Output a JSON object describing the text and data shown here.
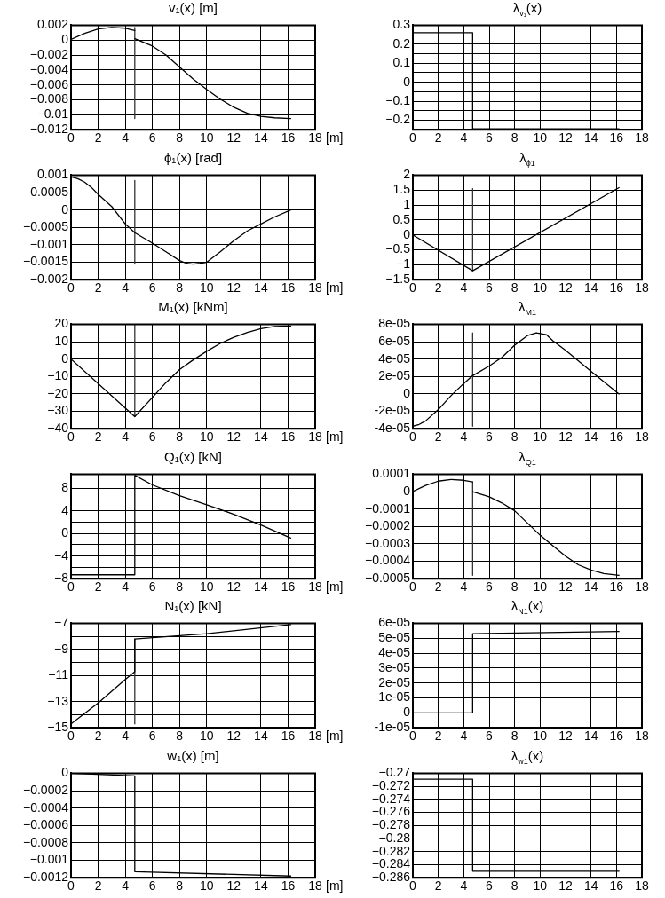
{
  "chart_data": [
    {
      "type": "line",
      "title": "v₁(x) [m]",
      "xlabel": "[m]",
      "xlim": [
        0,
        18
      ],
      "xticks": [
        0,
        2,
        4,
        6,
        8,
        10,
        12,
        14,
        16,
        18
      ],
      "ylim": [
        -0.012,
        0.002
      ],
      "yticks": [
        0.002,
        0,
        {
          "value": -0.002,
          "label": "−0.002"
        },
        {
          "value": -0.004,
          "label": "−0.004"
        },
        {
          "value": -0.006,
          "label": "−0.006"
        },
        {
          "value": -0.008,
          "label": "−0.008"
        },
        {
          "value": -0.01,
          "label": "−0.01"
        },
        {
          "value": -0.012,
          "label": "−0.012"
        }
      ],
      "grid": true,
      "series": [
        {
          "color": "#000000",
          "x": [
            0,
            1,
            2,
            3,
            4,
            4.7
          ],
          "values": [
            0.0001,
            0.0009,
            0.0015,
            0.0017,
            0.0016,
            0.0013
          ]
        },
        {
          "color": "#000000",
          "x": [
            4.7,
            6,
            7,
            8,
            9,
            10,
            11,
            12,
            13,
            14,
            15,
            16.2
          ],
          "values": [
            0.0002,
            -0.0008,
            -0.002,
            -0.0036,
            -0.0052,
            -0.0066,
            -0.0079,
            -0.009,
            -0.0098,
            -0.0102,
            -0.0104,
            -0.0105
          ]
        },
        {
          "color": "#333333",
          "x": [
            4.7,
            4.7
          ],
          "values": [
            0.0017,
            -0.0105
          ]
        }
      ]
    },
    {
      "type": "line",
      "title": "λ$_{v₁}$(x)",
      "xlim": [
        0,
        18
      ],
      "xticks": [
        0,
        2,
        4,
        6,
        8,
        10,
        12,
        14,
        16,
        18
      ],
      "ylim": [
        -0.25,
        0.3
      ],
      "yticks": [
        {
          "value": -0.25,
          "label": null
        },
        {
          "value": -0.2,
          "label": "−0.2"
        },
        {
          "value": -0.15,
          "label": null
        },
        {
          "value": -0.1,
          "label": "−0.1"
        },
        {
          "value": -0.05,
          "label": null
        },
        0,
        {
          "value": 0.05,
          "label": null
        },
        0.1,
        {
          "value": 0.15,
          "label": null
        },
        0.2,
        {
          "value": 0.25,
          "label": null
        },
        0.3
      ],
      "grid": true,
      "series": [
        {
          "color": "#000000",
          "x": [
            0,
            4.7,
            4.7,
            16.2
          ],
          "values": [
            0.26,
            0.26,
            -0.245,
            -0.245
          ]
        }
      ]
    },
    {
      "type": "line",
      "title": "ϕ₁(x) [rad]",
      "xlabel": "[m]",
      "xlim": [
        0,
        18
      ],
      "xticks": [
        0,
        2,
        4,
        6,
        8,
        10,
        12,
        14,
        16,
        18
      ],
      "ylim": [
        -0.002,
        0.001
      ],
      "yticks": [
        {
          "value": -0.002,
          "label": "−0.002"
        },
        {
          "value": -0.0015,
          "label": "−0.0015"
        },
        {
          "value": -0.001,
          "label": "−0.001"
        },
        {
          "value": -0.0005,
          "label": "−0.0005"
        },
        0,
        0.0005,
        0.001
      ],
      "grid": true,
      "series": [
        {
          "color": "#000000",
          "x": [
            0,
            0.5,
            1,
            1.5,
            2,
            3,
            4,
            4.7,
            6,
            7,
            8,
            8.5,
            9,
            9.5,
            10,
            11,
            12,
            13,
            14,
            15,
            16.2
          ],
          "values": [
            0.00095,
            0.0009,
            0.0008,
            0.00065,
            0.00045,
            0.0001,
            -0.0004,
            -0.00065,
            -0.00095,
            -0.0012,
            -0.00145,
            -0.00153,
            -0.00155,
            -0.00153,
            -0.0015,
            -0.0012,
            -0.00088,
            -0.0006,
            -0.0004,
            -0.0002,
            0
          ]
        },
        {
          "color": "#333333",
          "x": [
            4.7,
            4.7
          ],
          "values": [
            0.00085,
            -0.00155
          ]
        }
      ]
    },
    {
      "type": "line",
      "title": "λ$_{ϕ1}$",
      "xlim": [
        0,
        18
      ],
      "xticks": [
        0,
        2,
        4,
        6,
        8,
        10,
        12,
        14,
        16,
        18
      ],
      "ylim": [
        -1.5,
        2
      ],
      "yticks": [
        {
          "value": -1.5,
          "label": "−1.5"
        },
        {
          "value": -1,
          "label": "−1"
        },
        {
          "value": -0.5,
          "label": "−0.5"
        },
        0,
        0.5,
        1,
        1.5,
        2
      ],
      "grid": true,
      "series": [
        {
          "color": "#000000",
          "x": [
            0,
            4.7,
            16.2
          ],
          "values": [
            0,
            -1.2,
            1.58
          ]
        },
        {
          "color": "#333333",
          "x": [
            4.7,
            4.7
          ],
          "values": [
            1.55,
            -1.2
          ]
        }
      ]
    },
    {
      "type": "line",
      "title": "M₁(x) [kNm]",
      "xlabel": "[m]",
      "xlim": [
        0,
        18
      ],
      "xticks": [
        0,
        2,
        4,
        6,
        8,
        10,
        12,
        14,
        16,
        18
      ],
      "ylim": [
        -40,
        20
      ],
      "yticks": [
        {
          "value": -40,
          "label": "−40"
        },
        {
          "value": -30,
          "label": "−30"
        },
        {
          "value": -20,
          "label": "−20"
        },
        {
          "value": -10,
          "label": "−10"
        },
        0,
        10,
        20
      ],
      "grid": true,
      "series": [
        {
          "color": "#000000",
          "x": [
            0,
            4.7,
            6,
            7,
            8,
            9,
            10,
            11,
            12,
            13,
            14,
            15,
            16.2
          ],
          "values": [
            0,
            -33,
            -22,
            -13.5,
            -6,
            -0.5,
            4.5,
            9,
            12.5,
            15.3,
            17.5,
            18.7,
            19
          ]
        },
        {
          "color": "#333333",
          "x": [
            4.7,
            4.7
          ],
          "values": [
            20,
            -33
          ]
        }
      ]
    },
    {
      "type": "line",
      "title": "λ$_{M1}$",
      "xlim": [
        0,
        18
      ],
      "xticks": [
        0,
        2,
        4,
        6,
        8,
        10,
        12,
        14,
        16,
        18
      ],
      "ylim": [
        -4e-05,
        8e-05
      ],
      "yticks": [
        {
          "value": -4e-05,
          "label": "-4e-05"
        },
        {
          "value": -2e-05,
          "label": "-2e-05"
        },
        0,
        {
          "value": 2e-05,
          "label": "2e-05"
        },
        {
          "value": 4e-05,
          "label": "4e-05"
        },
        {
          "value": 6e-05,
          "label": "6e-05"
        },
        {
          "value": 8e-05,
          "label": "8e-05"
        }
      ],
      "grid": true,
      "series": [
        {
          "color": "#000000",
          "x": [
            0,
            0.5,
            1,
            2,
            3,
            4,
            4.7,
            6,
            7,
            8,
            9,
            9.7,
            10.5,
            11,
            12,
            14,
            16.2
          ],
          "values": [
            -3.7e-05,
            -3.5e-05,
            -3.1e-05,
            -1.8e-05,
            -2e-06,
            1.2e-05,
            2.1e-05,
            3.2e-05,
            4.2e-05,
            5.6e-05,
            6.7e-05,
            7e-05,
            6.8e-05,
            6.1e-05,
            5e-05,
            2.6e-05,
            0
          ]
        },
        {
          "color": "#333333",
          "x": [
            4.7,
            4.7
          ],
          "values": [
            7e-05,
            -3.7e-05
          ]
        }
      ]
    },
    {
      "type": "line",
      "title": "Q₁(x) [kN]",
      "xlabel": "[m]",
      "xlim": [
        0,
        18
      ],
      "xticks": [
        0,
        2,
        4,
        6,
        8,
        10,
        12,
        14,
        16,
        18
      ],
      "ylim": [
        -8,
        10.5
      ],
      "yticks": [
        {
          "value": -8,
          "label": "−8"
        },
        {
          "value": -6,
          "label": null
        },
        {
          "value": -4,
          "label": "−4"
        },
        {
          "value": -2,
          "label": null
        },
        0,
        {
          "value": 2,
          "label": null
        },
        4,
        {
          "value": 6,
          "label": null
        },
        8,
        {
          "value": 10,
          "label": null
        }
      ],
      "grid": true,
      "series": [
        {
          "color": "#000000",
          "x": [
            0,
            4.7,
            4.7,
            6,
            8,
            10,
            12,
            14,
            16.2
          ],
          "values": [
            -7.3,
            -7.3,
            10.3,
            8.6,
            6.7,
            5.1,
            3.4,
            1.5,
            -0.8
          ]
        }
      ]
    },
    {
      "type": "line",
      "title": "λ$_{Q1}$",
      "xlim": [
        0,
        18
      ],
      "xticks": [
        0,
        2,
        4,
        6,
        8,
        10,
        12,
        14,
        16,
        18
      ],
      "ylim": [
        -0.0005,
        0.0001
      ],
      "yticks": [
        {
          "value": -0.0005,
          "label": "−0.0005"
        },
        {
          "value": -0.0004,
          "label": "−0.0004"
        },
        {
          "value": -0.0003,
          "label": "−0.0003"
        },
        {
          "value": -0.0002,
          "label": "−0.0002"
        },
        {
          "value": -0.0001,
          "label": "−0.0001"
        },
        0,
        0.0001
      ],
      "grid": true,
      "series": [
        {
          "color": "#000000",
          "x": [
            0,
            1,
            2,
            3,
            4,
            4.7
          ],
          "values": [
            0,
            3.5e-05,
            6e-05,
            7e-05,
            6.5e-05,
            5.5e-05
          ]
        },
        {
          "color": "#000000",
          "x": [
            4.7,
            6,
            7,
            8,
            9,
            10,
            11,
            12,
            13,
            14,
            15,
            16.2
          ],
          "values": [
            0,
            -3e-05,
            -6.5e-05,
            -0.00011,
            -0.00018,
            -0.00025,
            -0.00031,
            -0.00037,
            -0.00042,
            -0.00045,
            -0.00047,
            -0.00048
          ]
        },
        {
          "color": "#333333",
          "x": [
            4.7,
            4.7
          ],
          "values": [
            5.5e-05,
            -0.00048
          ]
        }
      ]
    },
    {
      "type": "line",
      "title": "N₁(x) [kN]",
      "xlabel": "[m]",
      "xlim": [
        0,
        18
      ],
      "xticks": [
        0,
        2,
        4,
        6,
        8,
        10,
        12,
        14,
        16,
        18
      ],
      "ylim": [
        -15,
        -7
      ],
      "yticks": [
        {
          "value": -15,
          "label": "−15"
        },
        {
          "value": -14,
          "label": null
        },
        {
          "value": -13,
          "label": "−13"
        },
        {
          "value": -12,
          "label": null
        },
        {
          "value": -11,
          "label": "−11"
        },
        {
          "value": -10,
          "label": null
        },
        {
          "value": -9,
          "label": "−9"
        },
        {
          "value": -8,
          "label": null
        },
        {
          "value": -7,
          "label": "−7"
        }
      ],
      "grid": true,
      "series": [
        {
          "color": "#000000",
          "x": [
            0,
            1,
            2,
            3,
            4,
            4.7,
            4.7,
            10,
            16.2
          ],
          "values": [
            -14.7,
            -13.9,
            -13.1,
            -12.2,
            -11.3,
            -10.7,
            -8.2,
            -7.8,
            -7.1
          ]
        },
        {
          "color": "#333333",
          "x": [
            4.7,
            4.7
          ],
          "values": [
            -8.2,
            -14.7
          ]
        }
      ]
    },
    {
      "type": "line",
      "title": "λ$_{N1}$(x)",
      "xlim": [
        0,
        18
      ],
      "xticks": [
        0,
        2,
        4,
        6,
        8,
        10,
        12,
        14,
        16,
        18
      ],
      "ylim": [
        -1e-05,
        6e-05
      ],
      "yticks": [
        {
          "value": -1e-05,
          "label": "-1e-05"
        },
        0,
        {
          "value": 1e-05,
          "label": "1e-05"
        },
        {
          "value": 2e-05,
          "label": "2e-05"
        },
        {
          "value": 3e-05,
          "label": "3e-05"
        },
        {
          "value": 4e-05,
          "label": "4e-05"
        },
        {
          "value": 5e-05,
          "label": "5e-05"
        },
        {
          "value": 6e-05,
          "label": "6e-05"
        }
      ],
      "grid": true,
      "series": [
        {
          "color": "#000000",
          "x": [
            0,
            4.7,
            4.7,
            16.2
          ],
          "values": [
            0,
            0,
            5.3e-05,
            5.45e-05
          ]
        }
      ]
    },
    {
      "type": "line",
      "title": "w₁(x) [m]",
      "xlabel": "[m]",
      "xlim": [
        0,
        18
      ],
      "xticks": [
        0,
        2,
        4,
        6,
        8,
        10,
        12,
        14,
        16,
        18
      ],
      "ylim": [
        -0.0012,
        0
      ],
      "yticks": [
        {
          "value": -0.0012,
          "label": "−0.0012"
        },
        {
          "value": -0.001,
          "label": "−0.001"
        },
        {
          "value": -0.0008,
          "label": "−0.0008"
        },
        {
          "value": -0.0006,
          "label": "−0.0006"
        },
        {
          "value": -0.0004,
          "label": "−0.0004"
        },
        {
          "value": -0.0002,
          "label": "−0.0002"
        },
        0
      ],
      "grid": true,
      "series": [
        {
          "color": "#000000",
          "x": [
            0,
            4.7,
            4.7,
            16.2
          ],
          "values": [
            0,
            -3e-05,
            -0.00113,
            -0.00118
          ]
        }
      ]
    },
    {
      "type": "line",
      "title": "λ$_{w1}$(x)",
      "xlim": [
        0,
        18
      ],
      "xticks": [
        0,
        2,
        4,
        6,
        8,
        10,
        12,
        14,
        16,
        18
      ],
      "ylim": [
        -0.286,
        -0.27
      ],
      "yticks": [
        {
          "value": -0.286,
          "label": "−0.286"
        },
        {
          "value": -0.284,
          "label": "−0.284"
        },
        {
          "value": -0.282,
          "label": "−0.282"
        },
        {
          "value": -0.28,
          "label": "−0.28"
        },
        {
          "value": -0.278,
          "label": "−0.278"
        },
        {
          "value": -0.276,
          "label": "−0.276"
        },
        {
          "value": -0.274,
          "label": "−0.274"
        },
        {
          "value": -0.272,
          "label": "−0.272"
        },
        {
          "value": -0.27,
          "label": "−0.27"
        }
      ],
      "grid": true,
      "series": [
        {
          "color": "#000000",
          "x": [
            0,
            4.7,
            4.7,
            16.2
          ],
          "values": [
            -0.2709,
            -0.2709,
            -0.285,
            -0.285
          ]
        }
      ]
    }
  ]
}
